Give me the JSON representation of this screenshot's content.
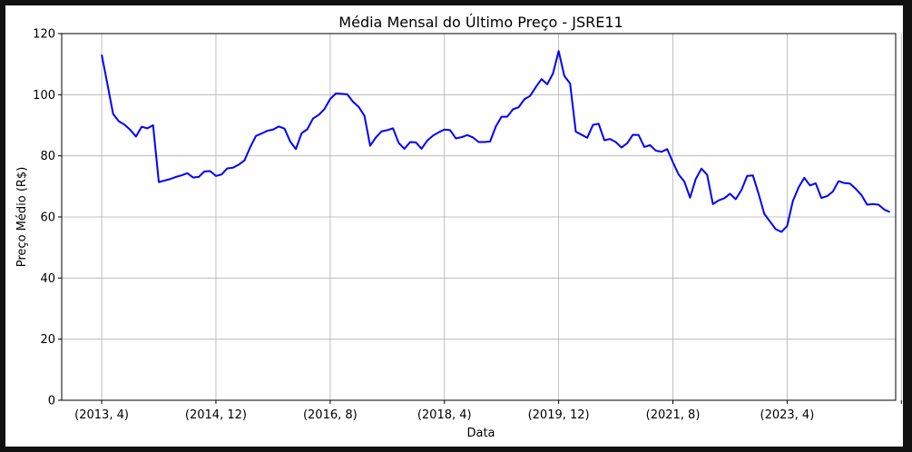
{
  "chart_data": {
    "type": "line",
    "title": "Média Mensal do Último Preço - JSRE11",
    "xlabel": "Data",
    "ylabel": "Preço Médio (R$)",
    "ylim": [
      0,
      120
    ],
    "yticks": [
      0,
      20,
      40,
      60,
      80,
      100,
      120
    ],
    "xlim": [
      -7,
      139
    ],
    "xtick_positions": [
      0,
      20,
      40,
      60,
      80,
      100,
      120,
      140
    ],
    "xtick_labels": [
      "(2013, 4)",
      "(2014, 12)",
      "(2016, 8)",
      "(2018, 4)",
      "(2019, 12)",
      "(2021, 8)",
      "(2023, 4)",
      ""
    ],
    "grid": true,
    "line_color": "#0000ff",
    "series": [
      {
        "x": [
          "(2013, 4)",
          "(2013, 5)",
          "(2013, 6)",
          "(2013, 7)",
          "(2013, 8)",
          "(2013, 9)",
          "(2013, 10)",
          "(2013, 11)",
          "(2013, 12)",
          "(2014, 1)",
          "(2014, 2)",
          "(2014, 3)",
          "(2014, 4)",
          "(2014, 5)",
          "(2014, 6)",
          "(2014, 7)",
          "(2014, 8)",
          "(2014, 9)",
          "(2014, 10)",
          "(2014, 11)",
          "(2014, 12)",
          "(2015, 1)",
          "(2015, 2)",
          "(2015, 3)",
          "(2015, 4)",
          "(2015, 5)",
          "(2015, 6)",
          "(2015, 7)",
          "(2015, 8)",
          "(2015, 9)",
          "(2015, 10)",
          "(2015, 11)",
          "(2015, 12)",
          "(2016, 1)",
          "(2016, 2)",
          "(2016, 3)",
          "(2016, 4)",
          "(2016, 5)",
          "(2016, 6)",
          "(2016, 7)",
          "(2016, 8)",
          "(2016, 9)",
          "(2016, 10)",
          "(2016, 11)",
          "(2016, 12)",
          "(2017, 1)",
          "(2017, 2)",
          "(2017, 3)",
          "(2017, 4)",
          "(2017, 5)",
          "(2017, 6)",
          "(2017, 7)",
          "(2017, 8)",
          "(2017, 9)",
          "(2017, 10)",
          "(2017, 11)",
          "(2017, 12)",
          "(2018, 1)",
          "(2018, 2)",
          "(2018, 3)",
          "(2018, 4)",
          "(2018, 5)",
          "(2018, 6)",
          "(2018, 7)",
          "(2018, 8)",
          "(2018, 9)",
          "(2018, 10)",
          "(2018, 11)",
          "(2018, 12)",
          "(2019, 1)",
          "(2019, 2)",
          "(2019, 3)",
          "(2019, 4)",
          "(2019, 5)",
          "(2019, 6)",
          "(2019, 7)",
          "(2019, 8)",
          "(2019, 9)",
          "(2019, 10)",
          "(2019, 11)",
          "(2019, 12)",
          "(2020, 1)",
          "(2020, 2)",
          "(2020, 3)",
          "(2020, 4)",
          "(2020, 5)",
          "(2020, 6)",
          "(2020, 7)",
          "(2020, 8)",
          "(2020, 9)",
          "(2020, 10)",
          "(2020, 11)",
          "(2020, 12)",
          "(2021, 1)",
          "(2021, 2)",
          "(2021, 3)",
          "(2021, 4)",
          "(2021, 5)",
          "(2021, 6)",
          "(2021, 7)",
          "(2021, 8)",
          "(2021, 9)",
          "(2021, 10)",
          "(2021, 11)",
          "(2021, 12)",
          "(2022, 1)",
          "(2022, 2)",
          "(2022, 3)",
          "(2022, 4)",
          "(2022, 5)",
          "(2022, 6)",
          "(2022, 7)",
          "(2022, 8)",
          "(2022, 9)",
          "(2022, 10)",
          "(2022, 11)",
          "(2022, 12)",
          "(2023, 1)",
          "(2023, 2)",
          "(2023, 3)",
          "(2023, 4)",
          "(2023, 5)",
          "(2023, 6)",
          "(2023, 7)",
          "(2023, 8)",
          "(2023, 9)",
          "(2023, 10)",
          "(2023, 11)",
          "(2023, 12)",
          "(2024, 1)",
          "(2024, 2)",
          "(2024, 3)",
          "(2024, 4)",
          "(2024, 5)",
          "(2024, 6)",
          "(2024, 7)",
          "(2024, 8)",
          "(2024, 9)",
          "(2024, 10)"
        ],
        "values": [
          113.1,
          103.5,
          93.7,
          91.3,
          90.2,
          88.5,
          86.3,
          89.5,
          89.0,
          90.0,
          71.4,
          71.9,
          72.4,
          73.1,
          73.6,
          74.3,
          72.9,
          73.1,
          74.9,
          75.0,
          73.4,
          73.9,
          75.9,
          76.1,
          77.1,
          78.5,
          82.8,
          86.5,
          87.3,
          88.2,
          88.6,
          89.6,
          88.9,
          84.7,
          82.2,
          87.4,
          88.7,
          92.2,
          93.4,
          95.3,
          98.6,
          100.4,
          100.3,
          100.1,
          97.7,
          96.0,
          93.1,
          83.3,
          86.0,
          88.0,
          88.4,
          89.0,
          84.2,
          82.3,
          84.5,
          84.4,
          82.3,
          85.0,
          86.6,
          87.7,
          88.6,
          88.4,
          85.7,
          86.1,
          86.8,
          86.0,
          84.5,
          84.5,
          84.7,
          89.6,
          92.8,
          92.8,
          95.2,
          95.9,
          98.5,
          99.6,
          102.5,
          105.1,
          103.4,
          106.9,
          114.3,
          106.1,
          103.7,
          87.9,
          86.9,
          85.9,
          90.1,
          90.5,
          85.1,
          85.5,
          84.5,
          82.7,
          84.1,
          86.9,
          86.8,
          82.9,
          83.5,
          81.7,
          81.3,
          82.2,
          77.9,
          73.9,
          71.6,
          66.3,
          72.4,
          75.8,
          73.8,
          64.2,
          65.4,
          66.1,
          67.6,
          65.8,
          68.8,
          73.4,
          73.6,
          67.6,
          61.0,
          58.5,
          56.0,
          55.1,
          57.0,
          65.2,
          69.6,
          72.8,
          70.3,
          71.0,
          66.2,
          66.8,
          68.3,
          71.7,
          71.1,
          70.9,
          69.2,
          67.2,
          64.0,
          64.2,
          64.0,
          62.4,
          61.6
        ]
      }
    ]
  }
}
